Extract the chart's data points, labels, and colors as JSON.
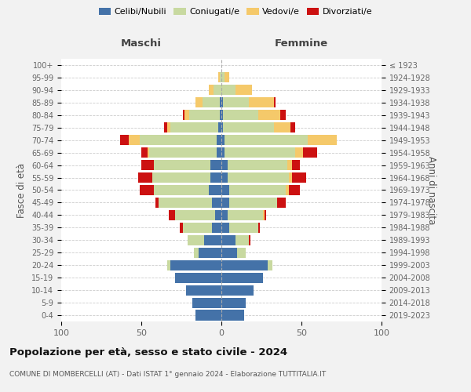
{
  "age_groups": [
    "0-4",
    "5-9",
    "10-14",
    "15-19",
    "20-24",
    "25-29",
    "30-34",
    "35-39",
    "40-44",
    "45-49",
    "50-54",
    "55-59",
    "60-64",
    "65-69",
    "70-74",
    "75-79",
    "80-84",
    "85-89",
    "90-94",
    "95-99",
    "100+"
  ],
  "birth_years": [
    "2019-2023",
    "2014-2018",
    "2009-2013",
    "2004-2008",
    "1999-2003",
    "1994-1998",
    "1989-1993",
    "1984-1988",
    "1979-1983",
    "1974-1978",
    "1969-1973",
    "1964-1968",
    "1959-1963",
    "1954-1958",
    "1949-1953",
    "1944-1948",
    "1939-1943",
    "1934-1938",
    "1929-1933",
    "1924-1928",
    "≤ 1923"
  ],
  "colors": {
    "celibi": "#4472a8",
    "coniugati": "#c8d9a0",
    "vedovi": "#f5c96a",
    "divorziati": "#cc1111"
  },
  "males": {
    "celibi": [
      16,
      18,
      22,
      29,
      32,
      14,
      11,
      6,
      4,
      6,
      8,
      7,
      7,
      3,
      3,
      2,
      1,
      1,
      0,
      0,
      0
    ],
    "coniugati": [
      0,
      0,
      0,
      0,
      2,
      3,
      10,
      18,
      25,
      33,
      34,
      36,
      35,
      42,
      48,
      30,
      19,
      11,
      5,
      1,
      0
    ],
    "vedovi": [
      0,
      0,
      0,
      0,
      0,
      0,
      0,
      0,
      0,
      0,
      0,
      0,
      0,
      1,
      7,
      2,
      3,
      4,
      3,
      1,
      0
    ],
    "divorziati": [
      0,
      0,
      0,
      0,
      0,
      0,
      0,
      2,
      4,
      2,
      9,
      9,
      8,
      4,
      5,
      2,
      1,
      0,
      0,
      0,
      0
    ]
  },
  "females": {
    "nubili": [
      14,
      15,
      20,
      26,
      29,
      10,
      9,
      5,
      4,
      5,
      5,
      4,
      4,
      2,
      2,
      1,
      1,
      1,
      0,
      0,
      0
    ],
    "coniugate": [
      0,
      0,
      0,
      0,
      3,
      5,
      8,
      18,
      22,
      30,
      35,
      38,
      37,
      44,
      52,
      32,
      22,
      16,
      9,
      2,
      0
    ],
    "vedove": [
      0,
      0,
      0,
      0,
      0,
      0,
      0,
      0,
      1,
      0,
      2,
      2,
      3,
      5,
      18,
      10,
      14,
      16,
      10,
      3,
      0
    ],
    "divorziate": [
      0,
      0,
      0,
      0,
      0,
      0,
      1,
      1,
      1,
      5,
      7,
      9,
      5,
      9,
      0,
      3,
      3,
      1,
      0,
      0,
      0
    ]
  },
  "title": "Popolazione per età, sesso e stato civile - 2024",
  "subtitle": "COMUNE DI MOMBERCELLI (AT) - Dati ISTAT 1° gennaio 2024 - Elaborazione TUTTITALIA.IT",
  "ylabel_left": "Fasce di età",
  "ylabel_right": "Anni di nascita",
  "xlabel_left": "Maschi",
  "xlabel_right": "Femmine",
  "xlim": 100,
  "bg_color": "#f2f2f2",
  "plot_bg": "#ffffff",
  "grid_color": "#cccccc"
}
